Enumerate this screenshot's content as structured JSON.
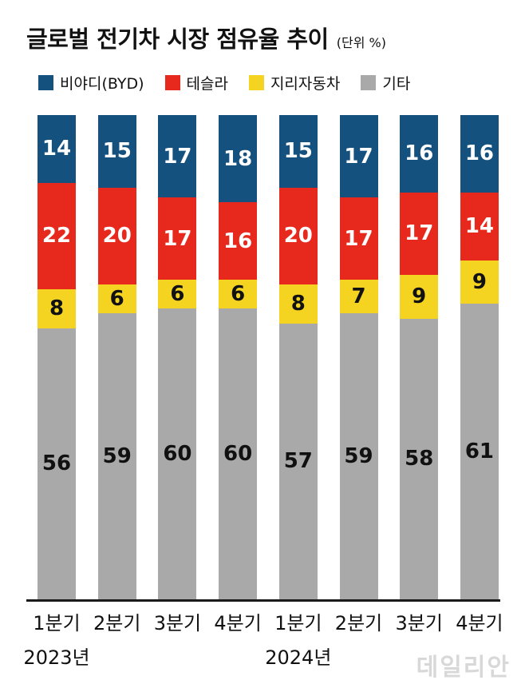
{
  "header": {
    "title": "글로벌 전기차 시장 점유율 추이",
    "unit": "(단위 %)"
  },
  "legend": [
    {
      "label": "비야디(BYD)",
      "color": "#15517f"
    },
    {
      "label": "테슬라",
      "color": "#e7281c"
    },
    {
      "label": "지리자동차",
      "color": "#f4d321"
    },
    {
      "label": "기타",
      "color": "#a9a9a9"
    }
  ],
  "chart_data": {
    "type": "bar",
    "stacked": true,
    "unit": "%",
    "title": "글로벌 전기차 시장 점유율 추이",
    "xlabel": "",
    "ylabel": "",
    "ylim": [
      0,
      100
    ],
    "grid": false,
    "legend_position": "top",
    "categories": [
      "1분기",
      "2분기",
      "3분기",
      "4분기",
      "1분기",
      "2분기",
      "3분기",
      "4분기"
    ],
    "year_labels": [
      {
        "label": "2023년",
        "index": 0
      },
      {
        "label": "2024년",
        "index": 4
      }
    ],
    "series": [
      {
        "name": "비야디(BYD)",
        "color": "#15517f",
        "text_color": "#ffffff",
        "values": [
          14,
          15,
          17,
          18,
          15,
          17,
          16,
          16
        ]
      },
      {
        "name": "테슬라",
        "color": "#e7281c",
        "text_color": "#ffffff",
        "values": [
          22,
          20,
          17,
          16,
          20,
          17,
          17,
          14
        ]
      },
      {
        "name": "지리자동차",
        "color": "#f4d321",
        "text_color": "#111111",
        "values": [
          8,
          6,
          6,
          6,
          8,
          7,
          9,
          9
        ]
      },
      {
        "name": "기타",
        "color": "#a9a9a9",
        "text_color": "#111111",
        "values": [
          56,
          59,
          60,
          60,
          57,
          59,
          58,
          61
        ]
      }
    ]
  },
  "watermark": "데일리안"
}
